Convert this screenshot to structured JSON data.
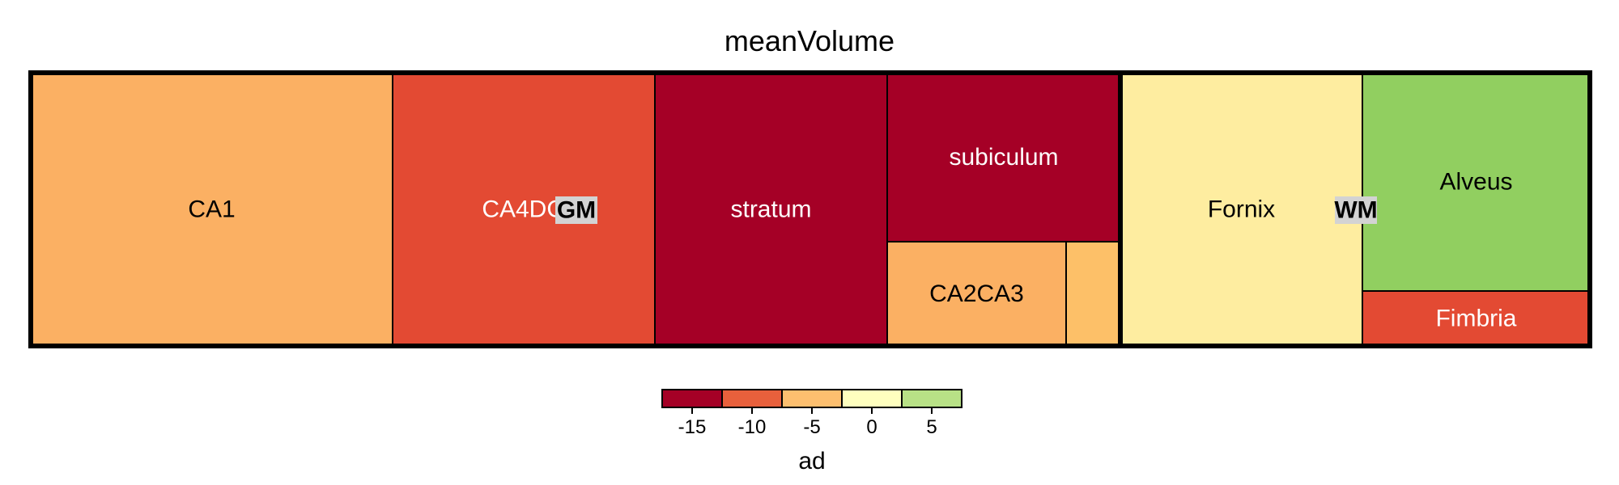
{
  "chart_data": {
    "type": "treemap",
    "title": "meanVolume",
    "size_variable": "meanVolume",
    "color_variable": "ad",
    "groups": [
      {
        "name": "GM",
        "cells": [
          {
            "label": "CA1",
            "color": "#FBB063"
          },
          {
            "label": "CA4DG",
            "color": "#E34A33"
          },
          {
            "label": "stratum",
            "color": "#A50026"
          },
          {
            "label": "subiculum",
            "color": "#A50026"
          },
          {
            "label": "CA2CA3",
            "color": "#FBB063"
          },
          {
            "label": "",
            "color": "#FDC068"
          }
        ]
      },
      {
        "name": "WM",
        "cells": [
          {
            "label": "Fornix",
            "color": "#FEEDA0"
          },
          {
            "label": "Alveus",
            "color": "#91CF60"
          },
          {
            "label": "Fimbria",
            "color": "#E34A33"
          }
        ]
      }
    ],
    "legend": {
      "title": "ad",
      "ticks": [
        "-15",
        "-10",
        "-5",
        "0",
        "5"
      ],
      "colors": [
        "#A50026",
        "#E8603C",
        "#FDBF6F",
        "#FFFFBF",
        "#B8E186"
      ],
      "placement": "bottom"
    }
  }
}
